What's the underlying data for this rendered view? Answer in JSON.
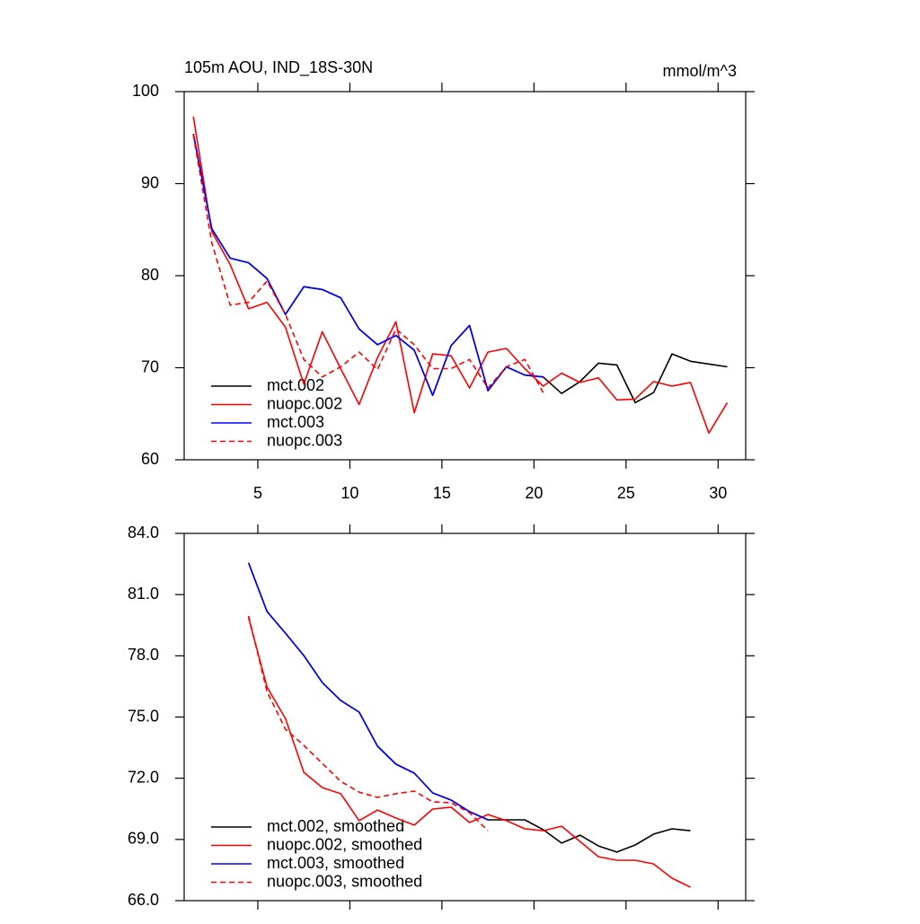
{
  "chart_data": [
    {
      "type": "line",
      "title": "105m AOU, IND_18S-30N",
      "units": "mmol/m^3",
      "xlim": [
        1,
        31.5
      ],
      "xticks": [
        5,
        10,
        15,
        20,
        25,
        30
      ],
      "ylim": [
        60,
        100
      ],
      "yticks": [
        60,
        70,
        80,
        90,
        100
      ],
      "legend": "lower left",
      "series": [
        {
          "name": "mct.002",
          "color": "#000000",
          "dashed": false,
          "x": [
            1.5,
            2.5,
            3.5,
            4.5,
            5.5,
            6.5,
            7.5,
            8.5,
            9.5,
            10.5,
            11.5,
            12.5,
            13.5,
            14.5,
            15.5,
            16.5,
            17.5,
            18.5,
            19.5,
            20.5,
            21.5,
            22.5,
            23.5,
            24.5,
            25.5,
            26.5,
            27.5,
            28.5,
            29.5,
            30.5
          ],
          "values": [
            95.4,
            85.1,
            81.9,
            81.4,
            79.7,
            75.8,
            78.8,
            78.5,
            77.6,
            74.2,
            72.5,
            73.5,
            71.9,
            67.0,
            72.4,
            74.6,
            67.5,
            70.1,
            69.2,
            69.0,
            67.2,
            68.5,
            70.5,
            70.3,
            66.2,
            67.3,
            71.5,
            70.7,
            70.4,
            70.1
          ]
        },
        {
          "name": "nuopc.002",
          "color": "#ff0000",
          "dashed": false,
          "x": [
            1.5,
            2.5,
            3.5,
            4.5,
            5.5,
            6.5,
            7.5,
            8.5,
            9.5,
            10.5,
            11.5,
            12.5,
            13.5,
            14.5,
            15.5,
            16.5,
            17.5,
            18.5,
            19.5,
            20.5,
            21.5,
            22.5,
            23.5,
            24.5,
            25.5,
            26.5,
            27.5,
            28.5,
            29.5,
            30.5
          ],
          "values": [
            97.3,
            84.8,
            81.2,
            76.4,
            77.1,
            74.4,
            68.2,
            73.9,
            69.9,
            66.0,
            71.1,
            75.0,
            65.1,
            71.5,
            71.3,
            67.8,
            71.7,
            72.1,
            69.9,
            68.0,
            69.4,
            68.4,
            68.9,
            66.5,
            66.6,
            68.5,
            68.0,
            68.4,
            62.9,
            66.2
          ]
        },
        {
          "name": "mct.003",
          "color": "#0000ff",
          "dashed": false,
          "x": [
            1.5,
            2.5,
            3.5,
            4.5,
            5.5,
            6.5,
            7.5,
            8.5,
            9.5,
            10.5,
            11.5,
            12.5,
            13.5,
            14.5,
            15.5,
            16.5,
            17.5,
            18.5,
            19.5,
            20.5
          ],
          "values": [
            95.4,
            85.1,
            81.9,
            81.4,
            79.7,
            75.8,
            78.8,
            78.5,
            77.6,
            74.2,
            72.5,
            73.5,
            71.9,
            67.0,
            72.4,
            74.6,
            67.5,
            70.1,
            69.2,
            69.0
          ]
        },
        {
          "name": "nuopc.003",
          "color": "#ff0000",
          "dashed": true,
          "x": [
            1.5,
            2.5,
            3.5,
            4.5,
            5.5,
            6.5,
            7.5,
            8.5,
            9.5,
            10.5,
            11.5,
            12.5,
            13.5,
            14.5,
            15.5,
            16.5,
            17.5,
            18.5,
            19.5,
            20.5
          ],
          "values": [
            95.3,
            83.6,
            76.8,
            77.1,
            79.4,
            75.8,
            70.9,
            69.0,
            70.1,
            71.7,
            69.8,
            74.2,
            72.5,
            69.9,
            69.9,
            70.9,
            67.8,
            70.1,
            70.9,
            67.3
          ]
        }
      ]
    },
    {
      "type": "line",
      "xlim": [
        1,
        31.5
      ],
      "xticks": [
        5,
        10,
        15,
        20,
        25,
        30
      ],
      "xticklabels": false,
      "ylim": [
        66,
        84
      ],
      "yticks": [
        {
          "value": 66,
          "label": "66.0"
        },
        {
          "value": 69,
          "label": "69.0"
        },
        {
          "value": 72,
          "label": "72.0"
        },
        {
          "value": 75,
          "label": "75.0"
        },
        {
          "value": 78,
          "label": "78.0"
        },
        {
          "value": 81,
          "label": "81.0"
        },
        {
          "value": 84,
          "label": "84.0"
        }
      ],
      "legend": "lower left",
      "series": [
        {
          "name": "mct.002, smoothed",
          "color": "#000000",
          "dashed": false,
          "x": [
            4.5,
            5.5,
            6.5,
            7.5,
            8.5,
            9.5,
            10.5,
            11.5,
            12.5,
            13.5,
            14.5,
            15.5,
            16.5,
            17.5,
            18.5,
            19.5,
            20.5,
            21.5,
            22.5,
            23.5,
            24.5,
            25.5,
            26.5,
            27.5,
            28.5
          ],
          "values": [
            82.55,
            80.17,
            79.11,
            78.01,
            76.69,
            75.81,
            75.24,
            73.57,
            72.69,
            72.25,
            71.28,
            70.93,
            70.36,
            69.96,
            69.96,
            69.96,
            69.48,
            68.82,
            69.21,
            68.68,
            68.38,
            68.73,
            69.26,
            69.52,
            69.43
          ]
        },
        {
          "name": "nuopc.002, smoothed",
          "color": "#ff0000",
          "dashed": false,
          "x": [
            4.5,
            5.5,
            6.5,
            7.5,
            8.5,
            9.5,
            10.5,
            11.5,
            12.5,
            13.5,
            14.5,
            15.5,
            16.5,
            17.5,
            18.5,
            19.5,
            20.5,
            21.5,
            22.5,
            23.5,
            24.5,
            25.5,
            26.5,
            27.5,
            28.5
          ],
          "values": [
            79.86,
            76.47,
            74.93,
            72.29,
            71.54,
            71.24,
            69.92,
            70.44,
            70.05,
            69.7,
            70.49,
            70.58,
            69.83,
            70.22,
            69.92,
            69.52,
            69.43,
            69.65,
            68.9,
            68.15,
            67.98,
            67.98,
            67.8,
            67.1,
            66.66
          ]
        },
        {
          "name": "mct.003, smoothed",
          "color": "#0000ff",
          "dashed": false,
          "x": [
            4.5,
            5.5,
            6.5,
            7.5,
            8.5,
            9.5,
            10.5,
            11.5,
            12.5,
            13.5,
            14.5,
            15.5,
            16.5,
            17.5
          ],
          "values": [
            82.55,
            80.17,
            79.11,
            78.01,
            76.69,
            75.81,
            75.24,
            73.57,
            72.69,
            72.25,
            71.28,
            70.93,
            70.36,
            69.96
          ]
        },
        {
          "name": "nuopc.003, smoothed",
          "color": "#ff0000",
          "dashed": true,
          "x": [
            4.5,
            5.5,
            6.5,
            7.5,
            8.5,
            9.5,
            10.5,
            11.5,
            12.5,
            13.5,
            14.5,
            15.5,
            16.5,
            17.5
          ],
          "values": [
            79.95,
            76.25,
            74.4,
            73.61,
            72.73,
            71.85,
            71.32,
            71.06,
            71.24,
            71.37,
            70.84,
            70.8,
            70.31,
            69.43
          ]
        }
      ]
    }
  ]
}
